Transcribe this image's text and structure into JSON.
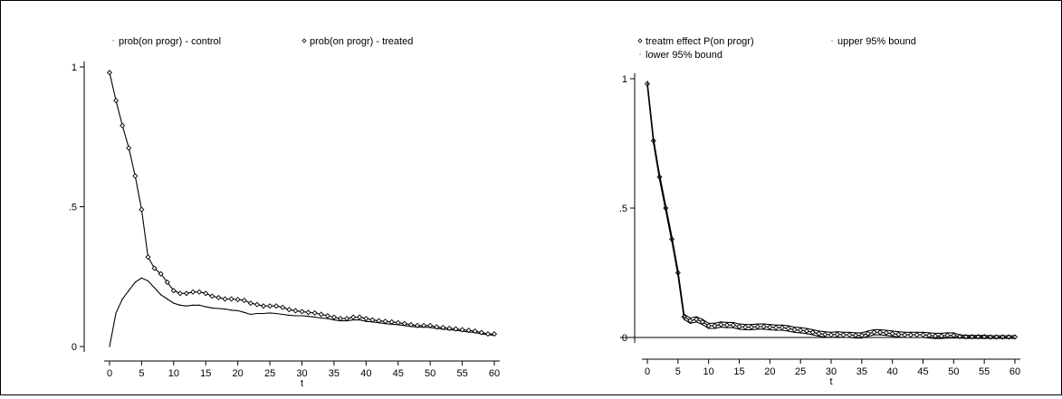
{
  "chart_data": [
    {
      "type": "line",
      "xlabel": "t",
      "ylabel": "",
      "xlim": [
        0,
        60
      ],
      "ylim": [
        0,
        1
      ],
      "xticks": [
        0,
        5,
        10,
        15,
        20,
        25,
        30,
        35,
        40,
        45,
        50,
        55,
        60
      ],
      "yticks": [
        {
          "v": 0,
          "label": "0"
        },
        {
          "v": 0.5,
          "label": ".5"
        },
        {
          "v": 1,
          "label": "1"
        }
      ],
      "grid": false,
      "legend_position": "top",
      "series": [
        {
          "name": "prob(on progr) - control",
          "marker": "small-dot",
          "x": [
            0,
            1,
            2,
            3,
            4,
            5,
            6,
            7,
            8,
            9,
            10,
            11,
            12,
            13,
            14,
            15,
            16,
            17,
            18,
            19,
            20,
            21,
            22,
            23,
            24,
            25,
            26,
            27,
            28,
            29,
            30,
            31,
            32,
            33,
            34,
            35,
            36,
            37,
            38,
            39,
            40,
            41,
            42,
            43,
            44,
            45,
            46,
            47,
            48,
            49,
            50,
            51,
            52,
            53,
            54,
            55,
            56,
            57,
            58,
            59,
            60
          ],
          "values": [
            0.0,
            0.12,
            0.17,
            0.2,
            0.23,
            0.245,
            0.235,
            0.21,
            0.185,
            0.17,
            0.155,
            0.148,
            0.145,
            0.148,
            0.148,
            0.142,
            0.138,
            0.136,
            0.134,
            0.13,
            0.128,
            0.122,
            0.115,
            0.118,
            0.118,
            0.12,
            0.118,
            0.115,
            0.112,
            0.11,
            0.11,
            0.108,
            0.105,
            0.102,
            0.1,
            0.095,
            0.092,
            0.092,
            0.095,
            0.095,
            0.09,
            0.088,
            0.085,
            0.082,
            0.08,
            0.078,
            0.075,
            0.072,
            0.07,
            0.07,
            0.068,
            0.065,
            0.062,
            0.06,
            0.058,
            0.055,
            0.052,
            0.05,
            0.045,
            0.042,
            0.04
          ]
        },
        {
          "name": "prob(on progr) - treated",
          "marker": "diamond",
          "x": [
            0,
            1,
            2,
            3,
            4,
            5,
            6,
            7,
            8,
            9,
            10,
            11,
            12,
            13,
            14,
            15,
            16,
            17,
            18,
            19,
            20,
            21,
            22,
            23,
            24,
            25,
            26,
            27,
            28,
            29,
            30,
            31,
            32,
            33,
            34,
            35,
            36,
            37,
            38,
            39,
            40,
            41,
            42,
            43,
            44,
            45,
            46,
            47,
            48,
            49,
            50,
            51,
            52,
            53,
            54,
            55,
            56,
            57,
            58,
            59,
            60
          ],
          "values": [
            0.98,
            0.88,
            0.79,
            0.71,
            0.61,
            0.49,
            0.32,
            0.28,
            0.26,
            0.23,
            0.2,
            0.19,
            0.19,
            0.195,
            0.195,
            0.19,
            0.18,
            0.175,
            0.17,
            0.17,
            0.168,
            0.165,
            0.155,
            0.15,
            0.145,
            0.145,
            0.145,
            0.14,
            0.132,
            0.128,
            0.125,
            0.122,
            0.12,
            0.115,
            0.11,
            0.105,
            0.1,
            0.1,
            0.105,
            0.105,
            0.1,
            0.095,
            0.092,
            0.09,
            0.088,
            0.085,
            0.082,
            0.078,
            0.075,
            0.075,
            0.075,
            0.07,
            0.068,
            0.065,
            0.063,
            0.06,
            0.058,
            0.055,
            0.05,
            0.045,
            0.045
          ]
        }
      ]
    },
    {
      "type": "line",
      "xlabel": "t",
      "ylabel": "",
      "xlim": [
        0,
        60
      ],
      "ylim": [
        0,
        1
      ],
      "xticks": [
        0,
        5,
        10,
        15,
        20,
        25,
        30,
        35,
        40,
        45,
        50,
        55,
        60
      ],
      "yticks": [
        {
          "v": 0,
          "label": "0"
        },
        {
          "v": 0.5,
          "label": ".5"
        },
        {
          "v": 1,
          "label": "1"
        }
      ],
      "grid": false,
      "reference_line_y": 0,
      "legend_position": "top",
      "series": [
        {
          "name": "treatm effect P(on progr)",
          "marker": "diamond",
          "x": [
            0,
            1,
            2,
            3,
            4,
            5,
            6,
            7,
            8,
            9,
            10,
            11,
            12,
            13,
            14,
            15,
            16,
            17,
            18,
            19,
            20,
            21,
            22,
            23,
            24,
            25,
            26,
            27,
            28,
            29,
            30,
            31,
            32,
            33,
            34,
            35,
            36,
            37,
            38,
            39,
            40,
            41,
            42,
            43,
            44,
            45,
            46,
            47,
            48,
            49,
            50,
            51,
            52,
            53,
            54,
            55,
            56,
            57,
            58,
            59,
            60
          ],
          "values": [
            0.98,
            0.76,
            0.62,
            0.5,
            0.38,
            0.25,
            0.08,
            0.065,
            0.07,
            0.06,
            0.045,
            0.045,
            0.05,
            0.048,
            0.048,
            0.042,
            0.04,
            0.04,
            0.042,
            0.042,
            0.04,
            0.038,
            0.038,
            0.035,
            0.03,
            0.028,
            0.025,
            0.02,
            0.015,
            0.012,
            0.01,
            0.012,
            0.01,
            0.01,
            0.008,
            0.008,
            0.015,
            0.02,
            0.02,
            0.018,
            0.015,
            0.012,
            0.01,
            0.01,
            0.01,
            0.01,
            0.008,
            0.006,
            0.006,
            0.008,
            0.008,
            0.004,
            0.003,
            0.003,
            0.003,
            0.003,
            0.002,
            0.002,
            0.002,
            0.002,
            0.002
          ]
        },
        {
          "name": "upper 95% bound",
          "marker": "small-dot",
          "x": [
            0,
            1,
            2,
            3,
            4,
            5,
            6,
            7,
            8,
            9,
            10,
            11,
            12,
            13,
            14,
            15,
            16,
            17,
            18,
            19,
            20,
            21,
            22,
            23,
            24,
            25,
            26,
            27,
            28,
            29,
            30,
            31,
            32,
            33,
            34,
            35,
            36,
            37,
            38,
            39,
            40,
            41,
            42,
            43,
            44,
            45,
            46,
            47,
            48,
            49,
            50,
            51,
            52,
            53,
            54,
            55,
            56,
            57,
            58,
            59,
            60
          ],
          "values": [
            0.99,
            0.77,
            0.63,
            0.51,
            0.39,
            0.26,
            0.09,
            0.075,
            0.08,
            0.07,
            0.055,
            0.055,
            0.06,
            0.058,
            0.058,
            0.052,
            0.05,
            0.05,
            0.052,
            0.052,
            0.05,
            0.048,
            0.048,
            0.045,
            0.04,
            0.038,
            0.035,
            0.03,
            0.025,
            0.022,
            0.02,
            0.022,
            0.02,
            0.02,
            0.018,
            0.018,
            0.025,
            0.03,
            0.03,
            0.028,
            0.025,
            0.022,
            0.02,
            0.02,
            0.02,
            0.02,
            0.018,
            0.016,
            0.016,
            0.018,
            0.018,
            0.01,
            0.008,
            0.008,
            0.008,
            0.008,
            0.007,
            0.007,
            0.007,
            0.007,
            0.007
          ]
        },
        {
          "name": "lower 95% bound",
          "marker": "small-dot",
          "x": [
            0,
            1,
            2,
            3,
            4,
            5,
            6,
            7,
            8,
            9,
            10,
            11,
            12,
            13,
            14,
            15,
            16,
            17,
            18,
            19,
            20,
            21,
            22,
            23,
            24,
            25,
            26,
            27,
            28,
            29,
            30,
            31,
            32,
            33,
            34,
            35,
            36,
            37,
            38,
            39,
            40,
            41,
            42,
            43,
            44,
            45,
            46,
            47,
            48,
            49,
            50,
            51,
            52,
            53,
            54,
            55,
            56,
            57,
            58,
            59,
            60
          ],
          "values": [
            0.97,
            0.75,
            0.61,
            0.49,
            0.37,
            0.24,
            0.07,
            0.055,
            0.06,
            0.05,
            0.035,
            0.035,
            0.04,
            0.038,
            0.038,
            0.032,
            0.03,
            0.03,
            0.032,
            0.032,
            0.03,
            0.028,
            0.028,
            0.025,
            0.02,
            0.018,
            0.015,
            0.01,
            0.005,
            0.002,
            0.0,
            0.002,
            0.0,
            0.0,
            -0.002,
            -0.002,
            0.005,
            0.01,
            0.01,
            0.008,
            0.005,
            0.002,
            0.0,
            0.0,
            0.0,
            0.0,
            -0.002,
            -0.004,
            -0.004,
            -0.002,
            -0.002,
            -0.002,
            -0.003,
            -0.003,
            -0.003,
            -0.003,
            -0.003,
            -0.003,
            -0.003,
            -0.003,
            -0.003
          ]
        }
      ]
    }
  ]
}
